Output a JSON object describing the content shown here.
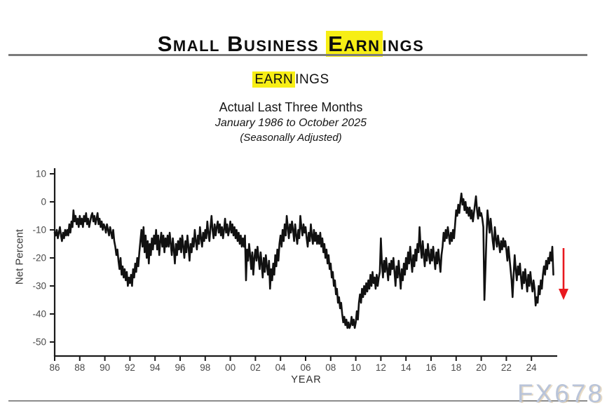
{
  "page": {
    "title_pre": "Small Business ",
    "title_highlight": "Earn",
    "title_post": "ings",
    "watermark": "FX678"
  },
  "subtitle": {
    "line1_highlight": "EARN",
    "line1_rest": "INGS",
    "line2": "Actual Last Three Months",
    "line3": "January 1986 to October 2025",
    "line4": "(Seasonally Adjusted)"
  },
  "colors": {
    "highlight": "#f7ee15",
    "series_line": "#111111",
    "arrow": "#e8191f",
    "axis": "#1a1a1a",
    "tick_label": "#4a4a4a",
    "watermark": "#b9c4d9",
    "rule": "#7b7b7b"
  },
  "chart_data": {
    "type": "line",
    "title": "EARNINGS",
    "subtitle": "Actual Last Three Months",
    "period": "January 1986 to October 2025",
    "note": "(Seasonally Adjusted)",
    "xlabel": "YEAR",
    "ylabel": "Net Percent",
    "grid": false,
    "legend": "none",
    "frequency": "monthly",
    "values_start": "1986-01",
    "values_end": "2025-10",
    "x_tick_labels": [
      "86",
      "88",
      "90",
      "92",
      "94",
      "96",
      "98",
      "00",
      "02",
      "04",
      "06",
      "08",
      "10",
      "12",
      "14",
      "16",
      "18",
      "20",
      "22",
      "24"
    ],
    "y_ticks": [
      10,
      0,
      -10,
      -20,
      -30,
      -40,
      -50
    ],
    "ylim": [
      -50,
      10
    ],
    "xlim_years": [
      1986,
      2026
    ],
    "annotation": {
      "type": "arrow-down",
      "location": "after last point",
      "color": "#e8191f"
    },
    "values": [
      -11,
      -12,
      -10,
      -13,
      -11,
      -9,
      -12,
      -14,
      -11,
      -13,
      -10,
      -12,
      -10,
      -12,
      -8,
      -11,
      -7,
      -9,
      -3,
      -7,
      -5,
      -8,
      -6,
      -9,
      -5,
      -8,
      -6,
      -9,
      -5,
      -7,
      -4,
      -8,
      -6,
      -9,
      -7,
      -5,
      -4,
      -7,
      -5,
      -8,
      -6,
      -4,
      -8,
      -6,
      -9,
      -7,
      -10,
      -8,
      -9,
      -11,
      -8,
      -10,
      -12,
      -9,
      -11,
      -13,
      -10,
      -14,
      -16,
      -19,
      -17,
      -21,
      -24,
      -20,
      -26,
      -23,
      -27,
      -24,
      -28,
      -25,
      -30,
      -27,
      -29,
      -26,
      -30,
      -24,
      -27,
      -22,
      -25,
      -20,
      -23,
      -18,
      -14,
      -10,
      -16,
      -9,
      -18,
      -12,
      -20,
      -14,
      -22,
      -15,
      -19,
      -13,
      -17,
      -12,
      -15,
      -10,
      -17,
      -12,
      -19,
      -14,
      -11,
      -16,
      -12,
      -18,
      -13,
      -16,
      -12,
      -16,
      -11,
      -15,
      -19,
      -13,
      -17,
      -22,
      -15,
      -19,
      -14,
      -17,
      -13,
      -18,
      -12,
      -16,
      -20,
      -14,
      -18,
      -12,
      -16,
      -21,
      -15,
      -18,
      -13,
      -16,
      -10,
      -14,
      -17,
      -12,
      -15,
      -9,
      -13,
      -16,
      -11,
      -14,
      -10,
      -13,
      -7,
      -11,
      -14,
      -9,
      -5,
      -10,
      -13,
      -8,
      -12,
      -9,
      -7,
      -11,
      -8,
      -12,
      -9,
      -13,
      -10,
      -6,
      -11,
      -8,
      -12,
      -10,
      -7,
      -11,
      -8,
      -12,
      -9,
      -13,
      -10,
      -14,
      -11,
      -15,
      -12,
      -16,
      -13,
      -16,
      -12,
      -28,
      -17,
      -21,
      -15,
      -19,
      -24,
      -18,
      -26,
      -20,
      -17,
      -21,
      -16,
      -20,
      -24,
      -18,
      -22,
      -27,
      -20,
      -25,
      -19,
      -23,
      -26,
      -21,
      -31,
      -24,
      -28,
      -22,
      -26,
      -19,
      -23,
      -17,
      -21,
      -15,
      -12,
      -16,
      -10,
      -14,
      -8,
      -12,
      -5,
      -9,
      -13,
      -8,
      -11,
      -7,
      -10,
      -14,
      -8,
      -12,
      -15,
      -10,
      -13,
      -5,
      -9,
      -12,
      -8,
      -11,
      -9,
      -13,
      -16,
      -11,
      -14,
      -8,
      -12,
      -15,
      -10,
      -14,
      -11,
      -15,
      -12,
      -15,
      -11,
      -16,
      -13,
      -18,
      -15,
      -20,
      -17,
      -22,
      -19,
      -24,
      -22,
      -27,
      -25,
      -30,
      -28,
      -33,
      -31,
      -36,
      -34,
      -38,
      -36,
      -40,
      -43,
      -41,
      -44,
      -42,
      -45,
      -43,
      -45,
      -44,
      -41,
      -44,
      -42,
      -45,
      -43,
      -39,
      -42,
      -36,
      -33,
      -36,
      -31,
      -34,
      -30,
      -33,
      -29,
      -32,
      -28,
      -31,
      -26,
      -30,
      -25,
      -29,
      -27,
      -31,
      -26,
      -30,
      -27,
      -25,
      -13,
      -22,
      -27,
      -21,
      -25,
      -20,
      -24,
      -28,
      -22,
      -26,
      -21,
      -24,
      -20,
      -25,
      -30,
      -23,
      -27,
      -21,
      -26,
      -31,
      -24,
      -28,
      -22,
      -26,
      -20,
      -24,
      -18,
      -22,
      -16,
      -21,
      -25,
      -19,
      -23,
      -17,
      -21,
      -15,
      -18,
      -9,
      -16,
      -20,
      -14,
      -19,
      -23,
      -17,
      -21,
      -15,
      -19,
      -22,
      -17,
      -21,
      -16,
      -20,
      -24,
      -18,
      -22,
      -17,
      -21,
      -25,
      -19,
      -16,
      -11,
      -14,
      -10,
      -13,
      -9,
      -12,
      -15,
      -11,
      -14,
      -10,
      -13,
      -8,
      -3,
      -5,
      -1,
      -4,
      0,
      3,
      -1,
      1,
      -3,
      0,
      -4,
      -2,
      -5,
      -2,
      -6,
      -3,
      -7,
      -4,
      -1,
      2,
      -3,
      -6,
      -2,
      -5,
      -4,
      -6,
      -9,
      -35,
      -24,
      -12,
      -3,
      -7,
      -11,
      -6,
      -10,
      -14,
      -17,
      -9,
      -13,
      -16,
      -12,
      -15,
      -18,
      -14,
      -17,
      -13,
      -16,
      -14,
      -17,
      -21,
      -16,
      -20,
      -24,
      -28,
      -34,
      -26,
      -19,
      -24,
      -28,
      -23,
      -26,
      -22,
      -27,
      -31,
      -25,
      -29,
      -24,
      -28,
      -32,
      -26,
      -30,
      -25,
      -29,
      -32,
      -28,
      -31,
      -37,
      -34,
      -36,
      -30,
      -33,
      -28,
      -31,
      -26,
      -23,
      -26,
      -21,
      -24,
      -20,
      -22,
      -18,
      -21,
      -16,
      -26
    ]
  }
}
